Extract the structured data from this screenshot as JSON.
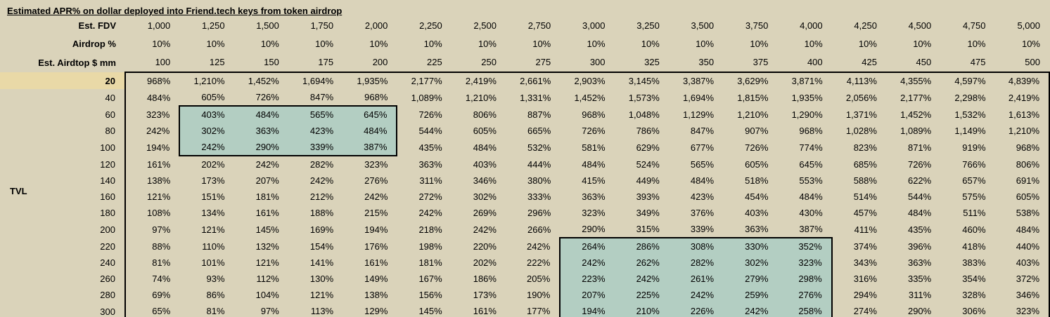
{
  "colors": {
    "background": "#dad3ba",
    "cell_highlight_teal": "#b3cec2",
    "row_label_highlight_tan": "#e9d9a7",
    "border": "#000000",
    "text": "#000000"
  },
  "chart_data": {
    "type": "table",
    "title": "Estimated APR% on dollar deployed into Friend.tech keys from token airdrop",
    "header_rows": [
      {
        "label": "Est. FDV",
        "values": [
          "1,000",
          "1,250",
          "1,500",
          "1,750",
          "2,000",
          "2,250",
          "2,500",
          "2,750",
          "3,000",
          "3,250",
          "3,500",
          "3,750",
          "4,000",
          "4,250",
          "4,500",
          "4,750",
          "5,000"
        ]
      },
      {
        "label": "Airdrop %",
        "values": [
          "10%",
          "10%",
          "10%",
          "10%",
          "10%",
          "10%",
          "10%",
          "10%",
          "10%",
          "10%",
          "10%",
          "10%",
          "10%",
          "10%",
          "10%",
          "10%",
          "10%"
        ]
      },
      {
        "label": "Est. Airdtop $ mm",
        "values": [
          "100",
          "125",
          "150",
          "175",
          "200",
          "225",
          "250",
          "275",
          "300",
          "325",
          "350",
          "375",
          "400",
          "425",
          "450",
          "475",
          "500"
        ]
      }
    ],
    "row_axis_label": "TVL",
    "row_labels": [
      "20",
      "40",
      "60",
      "80",
      "100",
      "120",
      "140",
      "160",
      "180",
      "200",
      "220",
      "240",
      "260",
      "280",
      "300"
    ],
    "highlighted_row_label": "20",
    "rows": [
      [
        "968%",
        "1,210%",
        "1,452%",
        "1,694%",
        "1,935%",
        "2,177%",
        "2,419%",
        "2,661%",
        "2,903%",
        "3,145%",
        "3,387%",
        "3,629%",
        "3,871%",
        "4,113%",
        "4,355%",
        "4,597%",
        "4,839%"
      ],
      [
        "484%",
        "605%",
        "726%",
        "847%",
        "968%",
        "1,089%",
        "1,210%",
        "1,331%",
        "1,452%",
        "1,573%",
        "1,694%",
        "1,815%",
        "1,935%",
        "2,056%",
        "2,177%",
        "2,298%",
        "2,419%"
      ],
      [
        "323%",
        "403%",
        "484%",
        "565%",
        "645%",
        "726%",
        "806%",
        "887%",
        "968%",
        "1,048%",
        "1,129%",
        "1,210%",
        "1,290%",
        "1,371%",
        "1,452%",
        "1,532%",
        "1,613%"
      ],
      [
        "242%",
        "302%",
        "363%",
        "423%",
        "484%",
        "544%",
        "605%",
        "665%",
        "726%",
        "786%",
        "847%",
        "907%",
        "968%",
        "1,028%",
        "1,089%",
        "1,149%",
        "1,210%"
      ],
      [
        "194%",
        "242%",
        "290%",
        "339%",
        "387%",
        "435%",
        "484%",
        "532%",
        "581%",
        "629%",
        "677%",
        "726%",
        "774%",
        "823%",
        "871%",
        "919%",
        "968%"
      ],
      [
        "161%",
        "202%",
        "242%",
        "282%",
        "323%",
        "363%",
        "403%",
        "444%",
        "484%",
        "524%",
        "565%",
        "605%",
        "645%",
        "685%",
        "726%",
        "766%",
        "806%"
      ],
      [
        "138%",
        "173%",
        "207%",
        "242%",
        "276%",
        "311%",
        "346%",
        "380%",
        "415%",
        "449%",
        "484%",
        "518%",
        "553%",
        "588%",
        "622%",
        "657%",
        "691%"
      ],
      [
        "121%",
        "151%",
        "181%",
        "212%",
        "242%",
        "272%",
        "302%",
        "333%",
        "363%",
        "393%",
        "423%",
        "454%",
        "484%",
        "514%",
        "544%",
        "575%",
        "605%"
      ],
      [
        "108%",
        "134%",
        "161%",
        "188%",
        "215%",
        "242%",
        "269%",
        "296%",
        "323%",
        "349%",
        "376%",
        "403%",
        "430%",
        "457%",
        "484%",
        "511%",
        "538%"
      ],
      [
        "97%",
        "121%",
        "145%",
        "169%",
        "194%",
        "218%",
        "242%",
        "266%",
        "290%",
        "315%",
        "339%",
        "363%",
        "387%",
        "411%",
        "435%",
        "460%",
        "484%"
      ],
      [
        "88%",
        "110%",
        "132%",
        "154%",
        "176%",
        "198%",
        "220%",
        "242%",
        "264%",
        "286%",
        "308%",
        "330%",
        "352%",
        "374%",
        "396%",
        "418%",
        "440%"
      ],
      [
        "81%",
        "101%",
        "121%",
        "141%",
        "161%",
        "181%",
        "202%",
        "222%",
        "242%",
        "262%",
        "282%",
        "302%",
        "323%",
        "343%",
        "363%",
        "383%",
        "403%"
      ],
      [
        "74%",
        "93%",
        "112%",
        "130%",
        "149%",
        "167%",
        "186%",
        "205%",
        "223%",
        "242%",
        "261%",
        "279%",
        "298%",
        "316%",
        "335%",
        "354%",
        "372%"
      ],
      [
        "69%",
        "86%",
        "104%",
        "121%",
        "138%",
        "156%",
        "173%",
        "190%",
        "207%",
        "225%",
        "242%",
        "259%",
        "276%",
        "294%",
        "311%",
        "328%",
        "346%"
      ],
      [
        "65%",
        "81%",
        "97%",
        "113%",
        "129%",
        "145%",
        "161%",
        "177%",
        "194%",
        "210%",
        "226%",
        "242%",
        "258%",
        "274%",
        "290%",
        "306%",
        "323%"
      ]
    ],
    "highlight_regions": [
      {
        "description": "TVL 60-100 x FDV 1,250-2,000",
        "row_start": 2,
        "row_end": 4,
        "col_start": 1,
        "col_end": 4
      },
      {
        "description": "TVL 220-300 x FDV 3,000-4,000",
        "row_start": 10,
        "row_end": 14,
        "col_start": 8,
        "col_end": 12
      }
    ]
  }
}
